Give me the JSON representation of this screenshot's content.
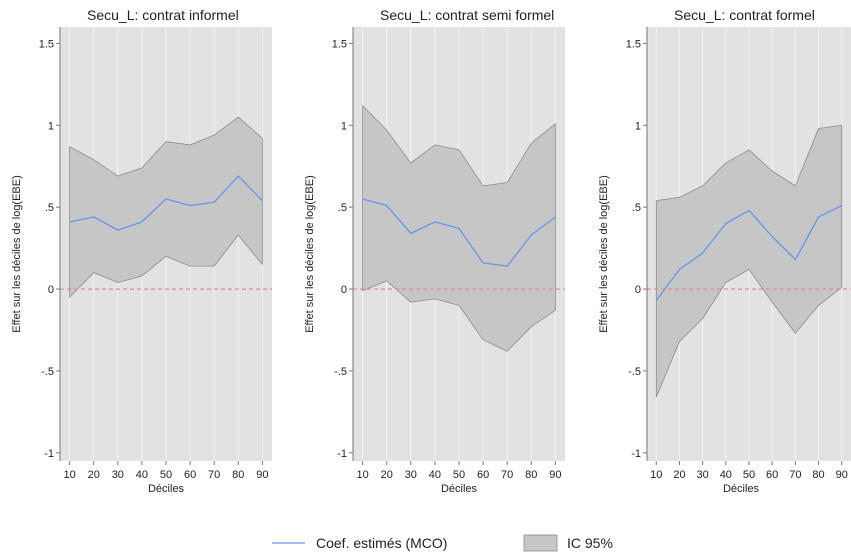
{
  "colors": {
    "plot_background": "#e2e2e2",
    "ci_fill": "#c6c6c6",
    "ci_edge": "#8c8c8c",
    "coef_line": "#6495ed",
    "zero_line": "#f08080",
    "grid": "#f3f3f3",
    "axis": "#777777"
  },
  "legend": {
    "coef_label": "Coef. estimés (MCO)",
    "ci_label": "IC 95%"
  },
  "chart_data": [
    {
      "type": "area",
      "title": "Secu_L: contrat informel",
      "xlabel": "Déciles",
      "ylabel": "Effet sur les déciles de log(EBE)",
      "x": [
        10,
        20,
        30,
        40,
        50,
        60,
        70,
        80,
        90
      ],
      "xticks": [
        "10",
        "20",
        "30",
        "40",
        "50",
        "60",
        "70",
        "80",
        "90"
      ],
      "yticks": [
        1.5,
        1,
        0.5,
        0,
        -0.5,
        -1
      ],
      "ytick_labels": [
        "1.5",
        "1",
        ".5",
        "0",
        "-.5",
        "-1"
      ],
      "ylim": [
        -1.05,
        1.6
      ],
      "xlim": [
        6,
        94
      ],
      "grid": true,
      "legend_position": "bottom",
      "series": [
        {
          "name": "Coef. estimés (MCO)",
          "values": [
            0.41,
            0.44,
            0.36,
            0.41,
            0.55,
            0.51,
            0.53,
            0.69,
            0.54
          ]
        },
        {
          "name": "IC 95%",
          "upper": [
            0.87,
            0.79,
            0.69,
            0.74,
            0.9,
            0.88,
            0.94,
            1.05,
            0.92
          ],
          "lower": [
            -0.05,
            0.1,
            0.04,
            0.08,
            0.2,
            0.14,
            0.14,
            0.33,
            0.15
          ]
        }
      ]
    },
    {
      "type": "area",
      "title": "Secu_L: contrat semi formel",
      "xlabel": "Déciles",
      "ylabel": "Effet sur les déciles de log(EBE)",
      "x": [
        10,
        20,
        30,
        40,
        50,
        60,
        70,
        80,
        90
      ],
      "xticks": [
        "10",
        "20",
        "30",
        "40",
        "50",
        "60",
        "70",
        "80",
        "90"
      ],
      "yticks": [
        1.5,
        1,
        0.5,
        0,
        -0.5,
        -1
      ],
      "ytick_labels": [
        "1.5",
        "1",
        ".5",
        "0",
        "-.5",
        "-1"
      ],
      "ylim": [
        -1.05,
        1.6
      ],
      "xlim": [
        6,
        94
      ],
      "grid": true,
      "legend_position": "bottom",
      "series": [
        {
          "name": "Coef. estimés (MCO)",
          "values": [
            0.55,
            0.51,
            0.34,
            0.41,
            0.37,
            0.16,
            0.14,
            0.33,
            0.44
          ]
        },
        {
          "name": "IC 95%",
          "upper": [
            1.12,
            0.97,
            0.77,
            0.88,
            0.85,
            0.63,
            0.65,
            0.89,
            1.01
          ],
          "lower": [
            -0.01,
            0.05,
            -0.08,
            -0.06,
            -0.1,
            -0.31,
            -0.38,
            -0.23,
            -0.13
          ]
        }
      ]
    },
    {
      "type": "area",
      "title": "Secu_L: contrat formel",
      "xlabel": "Déciles",
      "ylabel": "Effet sur les déciles de log(EBE)",
      "x": [
        10,
        20,
        30,
        40,
        50,
        60,
        70,
        80,
        90
      ],
      "xticks": [
        "10",
        "20",
        "30",
        "40",
        "50",
        "60",
        "70",
        "80",
        "90"
      ],
      "yticks": [
        1.5,
        1,
        0.5,
        0,
        -0.5,
        -1
      ],
      "ytick_labels": [
        "1.5",
        "1",
        ".5",
        "0",
        "-.5",
        "-1"
      ],
      "ylim": [
        -1.05,
        1.6
      ],
      "xlim": [
        6,
        94
      ],
      "grid": true,
      "legend_position": "bottom",
      "series": [
        {
          "name": "Coef. estimés (MCO)",
          "values": [
            -0.07,
            0.12,
            0.22,
            0.4,
            0.48,
            0.32,
            0.18,
            0.44,
            0.51
          ]
        },
        {
          "name": "IC 95%",
          "upper": [
            0.54,
            0.56,
            0.63,
            0.77,
            0.85,
            0.72,
            0.63,
            0.98,
            1.0
          ],
          "lower": [
            -0.66,
            -0.32,
            -0.18,
            0.04,
            0.12,
            -0.08,
            -0.27,
            -0.1,
            0.01
          ]
        }
      ]
    }
  ]
}
